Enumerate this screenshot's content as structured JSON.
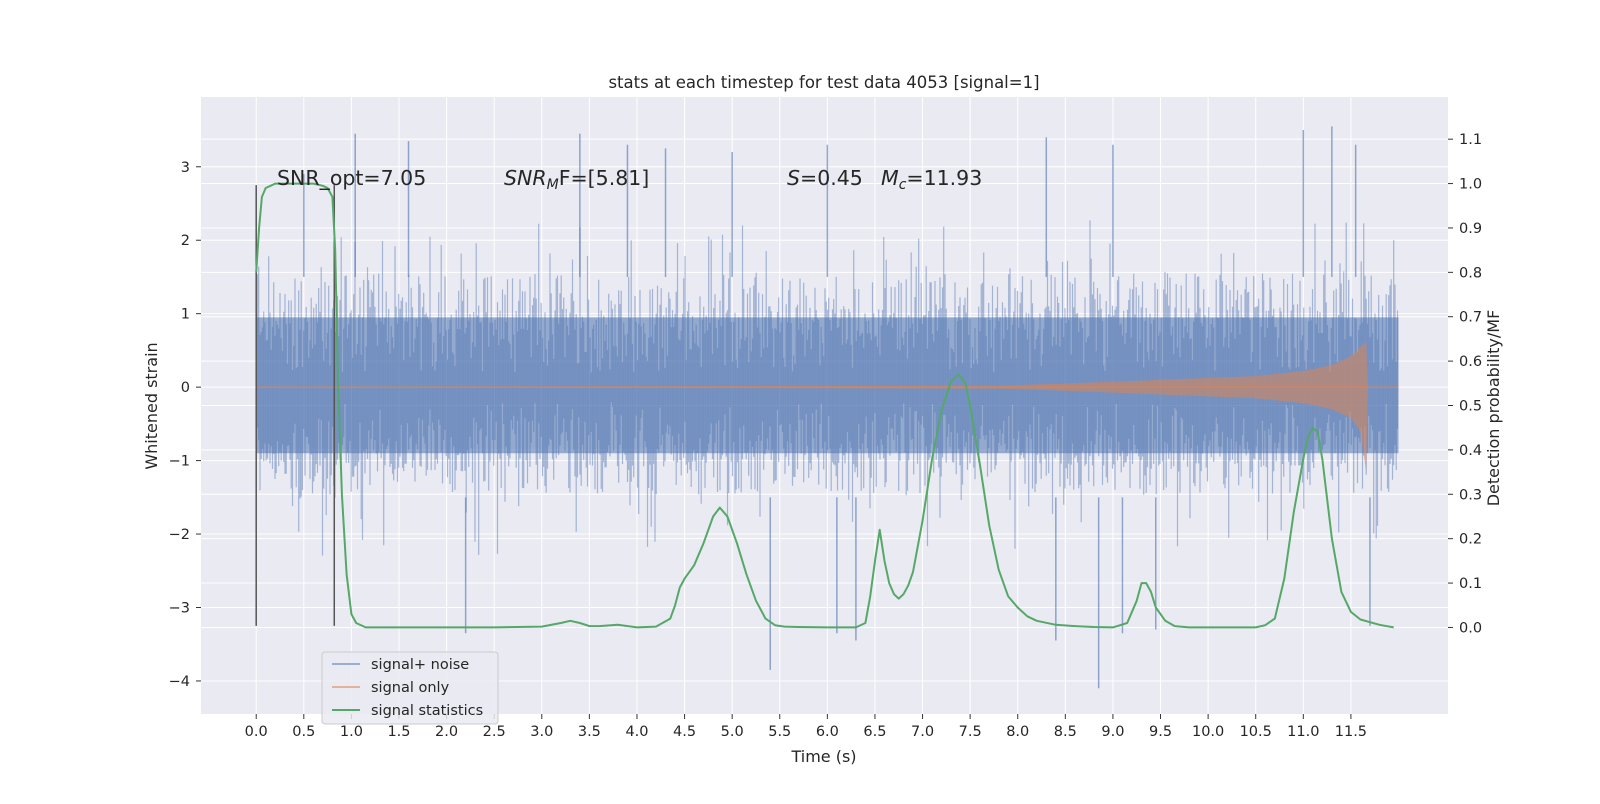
{
  "chart_data": {
    "type": "line",
    "title": "stats at each timestep for test data 4053 [signal=1]",
    "xlabel": "Time (s)",
    "ylabel": "Whitened strain",
    "ylabel_right": "Detection probability/MF",
    "xlim": [
      -0.58,
      12.52
    ],
    "ylim": [
      -4.45,
      3.95
    ],
    "ylim_right": [
      -0.195,
      1.195
    ],
    "x_ticks": [
      "0.0",
      "0.5",
      "1.0",
      "1.5",
      "2.0",
      "2.5",
      "3.0",
      "3.5",
      "4.0",
      "4.5",
      "5.0",
      "5.5",
      "6.0",
      "6.5",
      "7.0",
      "7.5",
      "8.0",
      "8.5",
      "9.0",
      "9.5",
      "10.0",
      "10.5",
      "11.0",
      "11.5"
    ],
    "y_ticks": [
      "3",
      "2",
      "1",
      "0",
      "−1",
      "−2",
      "−3",
      "−4"
    ],
    "y_ticks_right": [
      "1.1",
      "1.0",
      "0.9",
      "0.8",
      "0.7",
      "0.6",
      "0.5",
      "0.4",
      "0.3",
      "0.2",
      "0.1",
      "0.0"
    ],
    "grid": true,
    "legend_placement": "lower-left",
    "annotations": {
      "snr_opt": "SNR_opt=7.05",
      "snr_mf_main": "SNR",
      "snr_mf_sub": "M",
      "snr_mf_rest": "F=[5.81]",
      "s_main": "S",
      "s_rest": "=0.45",
      "mc_main": "M",
      "mc_sub": "c",
      "mc_rest": "=11.93"
    },
    "vertical_markers": {
      "x": [
        0.0,
        0.82
      ],
      "y_range": [
        -3.25,
        2.75
      ]
    },
    "colors": {
      "background": "#eaeaf2",
      "grid": "#ffffff",
      "noise": "#4c72b0",
      "signal": "#dd8452",
      "stats": "#55a868",
      "marker": "#555555"
    },
    "series": [
      {
        "name": "signal+ noise",
        "x_range": [
          0.0,
          12.0
        ],
        "envelope": {
          "p50": [
            -0.9,
            0.95
          ],
          "p90": [
            -1.45,
            1.55
          ],
          "p99": [
            -2.3,
            2.3
          ]
        },
        "peaks_x": [
          0.5,
          1.04,
          1.6,
          3.4,
          3.9,
          4.3,
          5.0,
          6.0,
          8.3,
          9.0,
          11.0,
          11.3,
          11.55
        ],
        "peaks_y": [
          2.9,
          3.45,
          3.35,
          3.45,
          3.3,
          3.25,
          3.2,
          3.3,
          3.4,
          3.3,
          3.5,
          3.55,
          3.3
        ],
        "troughs_x": [
          2.2,
          5.4,
          6.1,
          6.3,
          8.4,
          8.85,
          9.1,
          9.45,
          11.7
        ],
        "troughs_y": [
          -3.35,
          -3.85,
          -3.35,
          -3.45,
          -3.45,
          -4.1,
          -3.35,
          -3.3,
          -3.25
        ]
      },
      {
        "name": "signal only",
        "x": [
          0.0,
          7.8,
          8.5,
          9.5,
          10.5,
          11.0,
          11.3,
          11.5,
          11.6,
          11.66,
          11.68,
          12.0
        ],
        "amplitude": [
          0.0,
          0.02,
          0.05,
          0.1,
          0.15,
          0.22,
          0.3,
          0.42,
          0.55,
          0.62,
          0.0,
          0.0
        ],
        "min_values": [
          0.0,
          -0.02,
          -0.05,
          -0.1,
          -0.15,
          -0.22,
          -0.3,
          -0.42,
          -0.6,
          -1.15,
          0.0,
          0.0
        ]
      },
      {
        "name": "signal statistics",
        "axis": "right",
        "x": [
          0.0,
          0.03,
          0.06,
          0.1,
          0.15,
          0.2,
          0.3,
          0.4,
          0.5,
          0.6,
          0.7,
          0.75,
          0.8,
          0.83,
          0.86,
          0.9,
          0.95,
          1.0,
          1.05,
          1.15,
          1.3,
          1.5,
          2.0,
          2.5,
          3.0,
          3.2,
          3.3,
          3.4,
          3.5,
          3.6,
          3.8,
          4.0,
          4.2,
          4.35,
          4.4,
          4.45,
          4.5,
          4.6,
          4.7,
          4.8,
          4.87,
          4.95,
          5.05,
          5.15,
          5.25,
          5.35,
          5.45,
          5.55,
          5.7,
          6.0,
          6.3,
          6.4,
          6.45,
          6.5,
          6.55,
          6.6,
          6.65,
          6.7,
          6.75,
          6.8,
          6.85,
          6.9,
          7.0,
          7.1,
          7.2,
          7.3,
          7.38,
          7.45,
          7.5,
          7.6,
          7.7,
          7.8,
          7.9,
          8.0,
          8.1,
          8.2,
          8.4,
          8.6,
          8.8,
          9.0,
          9.15,
          9.25,
          9.3,
          9.35,
          9.4,
          9.45,
          9.55,
          9.65,
          9.8,
          10.0,
          10.3,
          10.5,
          10.6,
          10.7,
          10.8,
          10.9,
          11.0,
          11.05,
          11.1,
          11.15,
          11.2,
          11.3,
          11.4,
          11.5,
          11.6,
          11.8,
          11.95
        ],
        "values": [
          0.8,
          0.9,
          0.97,
          0.99,
          0.995,
          1.0,
          1.0,
          1.0,
          1.0,
          1.0,
          0.995,
          0.99,
          0.97,
          0.85,
          0.55,
          0.3,
          0.12,
          0.03,
          0.01,
          0.0,
          0.0,
          0.0,
          0.0,
          0.0,
          0.002,
          0.01,
          0.015,
          0.01,
          0.003,
          0.003,
          0.006,
          0.0,
          0.002,
          0.02,
          0.05,
          0.09,
          0.11,
          0.14,
          0.19,
          0.25,
          0.27,
          0.25,
          0.19,
          0.12,
          0.06,
          0.02,
          0.005,
          0.002,
          0.001,
          0.0,
          0.0,
          0.01,
          0.07,
          0.15,
          0.22,
          0.15,
          0.1,
          0.075,
          0.065,
          0.075,
          0.095,
          0.125,
          0.24,
          0.38,
          0.49,
          0.555,
          0.57,
          0.55,
          0.5,
          0.37,
          0.23,
          0.13,
          0.07,
          0.045,
          0.025,
          0.015,
          0.006,
          0.003,
          0.001,
          0.0,
          0.01,
          0.06,
          0.1,
          0.1,
          0.08,
          0.045,
          0.015,
          0.003,
          0.0,
          0.0,
          0.0,
          0.0,
          0.005,
          0.02,
          0.11,
          0.26,
          0.38,
          0.43,
          0.45,
          0.44,
          0.38,
          0.2,
          0.08,
          0.035,
          0.018,
          0.006,
          0.0
        ]
      }
    ]
  }
}
